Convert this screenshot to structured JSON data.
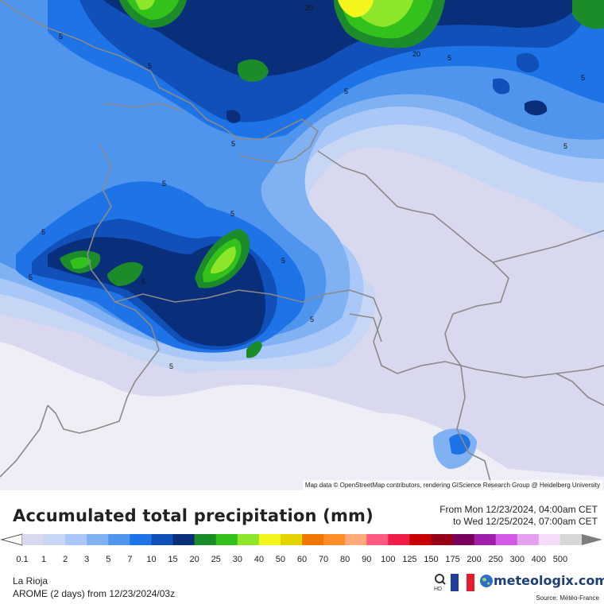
{
  "map": {
    "attribution": "Map data © OpenStreetMap contributors, rendering GIScience Research Group @ Heidelberg University",
    "contour_labels": [
      "5",
      "5",
      "5",
      "5",
      "5",
      "5",
      "5",
      "5",
      "5",
      "5",
      "5",
      "5",
      "5",
      "5",
      "5",
      "20",
      "20"
    ]
  },
  "legend": {
    "title": "Accumulated total precipitation (mm)",
    "period_from": "From Mon 12/23/2024, 04:00am CET",
    "period_to": "to Wed 12/25/2024, 07:00am CET",
    "scale": [
      {
        "label": "0.1",
        "color": "#d8d8ee"
      },
      {
        "label": "1",
        "color": "#c7d6f5"
      },
      {
        "label": "2",
        "color": "#a9c8f7"
      },
      {
        "label": "3",
        "color": "#7fb1f3"
      },
      {
        "label": "5",
        "color": "#4f95ee"
      },
      {
        "label": "7",
        "color": "#1e73e6"
      },
      {
        "label": "10",
        "color": "#1050b8"
      },
      {
        "label": "15",
        "color": "#0a2f7a"
      },
      {
        "label": "20",
        "color": "#1c8c2a"
      },
      {
        "label": "25",
        "color": "#33c21c"
      },
      {
        "label": "30",
        "color": "#8ee62a"
      },
      {
        "label": "40",
        "color": "#f5f51e"
      },
      {
        "label": "50",
        "color": "#e6d200"
      },
      {
        "label": "60",
        "color": "#f07800"
      },
      {
        "label": "70",
        "color": "#ff8c28"
      },
      {
        "label": "80",
        "color": "#ffaa78"
      },
      {
        "label": "90",
        "color": "#ff5a82"
      },
      {
        "label": "100",
        "color": "#f01e46"
      },
      {
        "label": "125",
        "color": "#c80000"
      },
      {
        "label": "150",
        "color": "#960014"
      },
      {
        "label": "175",
        "color": "#78005a"
      },
      {
        "label": "200",
        "color": "#a01eaa"
      },
      {
        "label": "250",
        "color": "#d25ae6"
      },
      {
        "label": "300",
        "color": "#e6a0f0"
      },
      {
        "label": "400",
        "color": "#f5ddfa"
      },
      {
        "label": "500",
        "color": "#d7d7d7"
      }
    ]
  },
  "footer": {
    "region": "La Rioja",
    "model": "AROME (2 days) from 12/23/2024/03z",
    "brand": "meteologix.com",
    "source": "Source: Météo-France",
    "hd_label": "HD",
    "flag_colors": [
      "#1f3f9a",
      "#ffffff",
      "#e01e2d"
    ],
    "brand_color": "#1d3f77"
  }
}
